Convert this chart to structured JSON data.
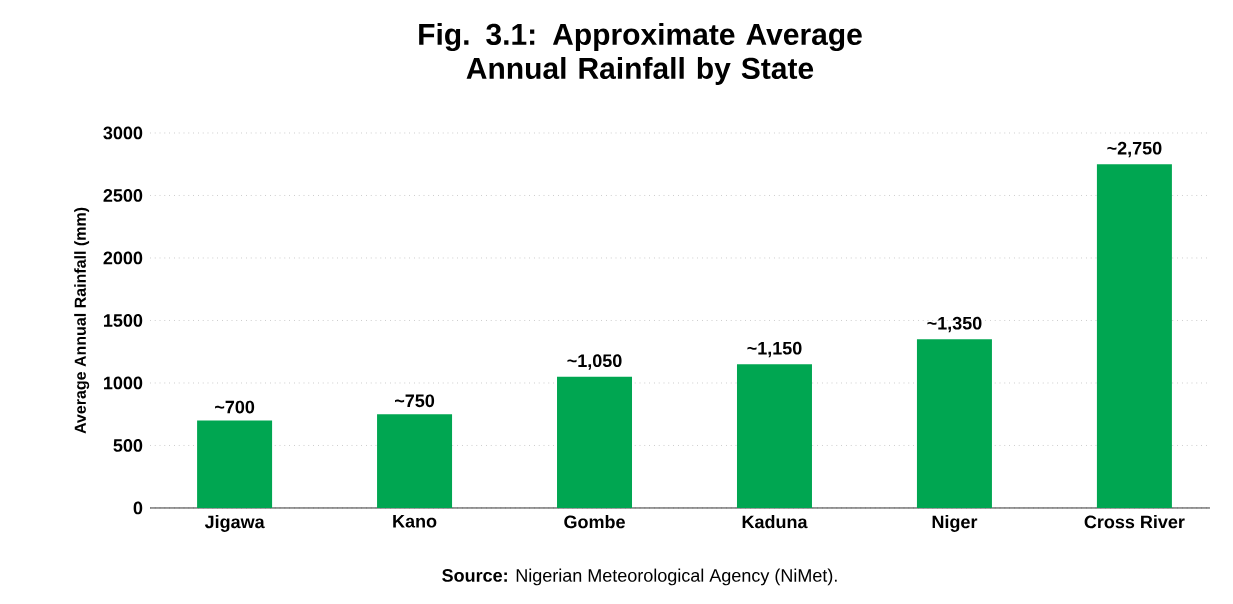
{
  "chart_data": {
    "type": "bar",
    "title": "Fig. 3.1: Approximate Average Annual Rainfall by State",
    "ylabel": "Average Annual Rainfall (mm)",
    "categories": [
      "Jigawa",
      "Kano",
      "Gombe",
      "Kaduna",
      "Niger",
      "Cross River"
    ],
    "values": [
      700,
      750,
      1050,
      1150,
      1350,
      2750
    ],
    "value_labels": [
      "~700",
      "~750",
      "~1,050",
      "~1,150",
      "~1,350",
      "~2,750"
    ],
    "color": "#00a651",
    "ylim": [
      0,
      3000
    ],
    "yticks": [
      0,
      500,
      1000,
      1500,
      2000,
      2500,
      3000
    ],
    "grid": "y",
    "annotations": [
      "**Source:** Nigerian Meteorological Agency (NiMet)."
    ]
  }
}
